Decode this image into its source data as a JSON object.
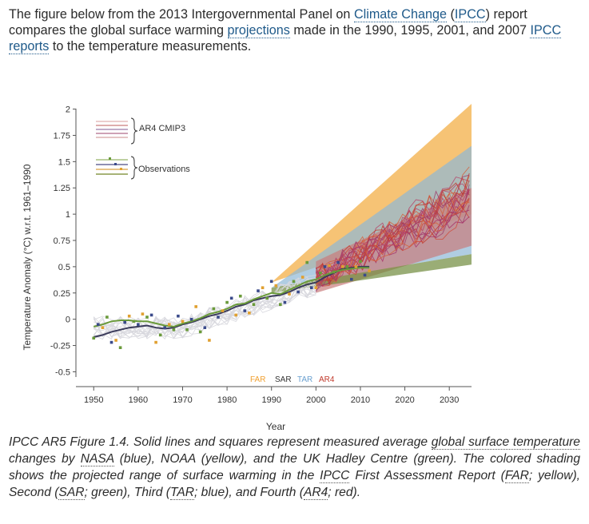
{
  "intro": {
    "t1": "The figure below from the 2013 Intergovernmental Panel on ",
    "l1": "Climate Change",
    "t2": " (",
    "l2": "IPCC",
    "t3": ") report compares the global surface warming ",
    "l3": "projections",
    "t4": " made in the 1990, 1995, 2001, and 2007 ",
    "l4": "IPCC reports",
    "t5": " to the temperature measurements."
  },
  "caption": {
    "t1": "IPCC AR5 Figure 1.4. Solid lines and squares represent measured average ",
    "l1": "global surface temperature",
    "t2": " changes by ",
    "l2": "NASA",
    "t3": " (blue), NOAA (yellow), and the UK Hadley Centre (green). The colored shading shows the projected range of surface warming in the ",
    "l3": "IPCC",
    "t4": " First Assessment Report (",
    "l4": "FAR",
    "t5": "; yellow), Second (",
    "l5": "SAR",
    "t6": "; green), Third (",
    "l6": "TAR",
    "t7": "; blue), and Fourth (",
    "l7": "AR4",
    "t8": "; red)."
  },
  "chart_data": {
    "type": "line",
    "title": "",
    "xlabel": "Year",
    "ylabel": "Temperature Anomaly (°C) w.r.t. 1961–1990",
    "xlim": [
      1946,
      2035
    ],
    "ylim": [
      -0.55,
      2.05
    ],
    "x_ticks": [
      "1950",
      "1960",
      "1970",
      "1980",
      "1990",
      "2000",
      "2010",
      "2020",
      "2030"
    ],
    "x_tick_values": [
      1950,
      1960,
      1970,
      1980,
      1990,
      2000,
      2010,
      2020,
      2030
    ],
    "y_ticks": [
      "-0.5",
      "-0.25",
      "0",
      "0.25",
      "0.5",
      "0.75",
      "1",
      "1.25",
      "1.5",
      "1.75",
      "2"
    ],
    "y_tick_values": [
      -0.5,
      -0.25,
      0,
      0.25,
      0.5,
      0.75,
      1,
      1.25,
      1.5,
      1.75,
      2
    ],
    "legend": [
      {
        "label": "AR4 CMIP3"
      },
      {
        "label": "Observations"
      }
    ],
    "projection_labels": [
      {
        "label": "FAR",
        "color": "#f0a030"
      },
      {
        "label": "SAR",
        "color": "#333333"
      },
      {
        "label": "TAR",
        "color": "#6aa0d0"
      },
      {
        "label": "AR4",
        "color": "#c0392b"
      }
    ],
    "projection_ranges": [
      {
        "name": "FAR",
        "color": "#f2a93b",
        "x": [
          1990,
          2035
        ],
        "lower": [
          0.35,
          1.0
        ],
        "upper": [
          0.35,
          2.05
        ]
      },
      {
        "name": "TAR",
        "color": "#8fb8d6",
        "x": [
          1990,
          2035
        ],
        "lower": [
          0.3,
          0.62
        ],
        "upper": [
          0.3,
          1.65
        ]
      },
      {
        "name": "AR4",
        "color": "#c97c7c",
        "x": [
          2000,
          2035
        ],
        "lower": [
          0.25,
          0.7
        ],
        "upper": [
          0.55,
          1.25
        ]
      },
      {
        "name": "SAR",
        "color": "#6f8a3c",
        "x": [
          1990,
          2035
        ],
        "lower": [
          0.25,
          0.52
        ],
        "upper": [
          0.3,
          0.62
        ]
      }
    ],
    "series": [
      {
        "color": "#3a3a5a",
        "x": [
          1950,
          1952,
          1954,
          1956,
          1958,
          1960,
          1962,
          1964,
          1966,
          1968,
          1970,
          1972,
          1974,
          1976,
          1978,
          1980,
          1982,
          1984,
          1986,
          1988,
          1990,
          1992,
          1994,
          1996,
          1998,
          2000,
          2002,
          2004,
          2006,
          2008,
          2010,
          2012
        ],
        "values": [
          -0.17,
          -0.15,
          -0.12,
          -0.1,
          -0.08,
          -0.07,
          -0.06,
          -0.08,
          -0.09,
          -0.08,
          -0.05,
          -0.03,
          0.0,
          0.03,
          0.05,
          0.08,
          0.12,
          0.14,
          0.18,
          0.2,
          0.22,
          0.23,
          0.26,
          0.3,
          0.33,
          0.35,
          0.4,
          0.44,
          0.48,
          0.49,
          0.5,
          0.5
        ]
      },
      {
        "color": "#6a9a3a",
        "x": [
          1950,
          1952,
          1954,
          1956,
          1958,
          1960,
          1962,
          1964,
          1966,
          1968,
          1970,
          1972,
          1974,
          1976,
          1978,
          1980,
          1982,
          1984,
          1986,
          1988,
          1990,
          1992,
          1994,
          1996,
          1998,
          2000,
          2002,
          2004,
          2006,
          2008,
          2010,
          2012
        ],
        "values": [
          -0.07,
          -0.05,
          -0.02,
          -0.01,
          -0.01,
          -0.02,
          -0.02,
          -0.04,
          -0.06,
          -0.07,
          -0.04,
          -0.02,
          0.01,
          0.05,
          0.07,
          0.1,
          0.14,
          0.15,
          0.19,
          0.22,
          0.25,
          0.24,
          0.28,
          0.32,
          0.36,
          0.38,
          0.42,
          0.45,
          0.47,
          0.48,
          0.49,
          0.49
        ]
      }
    ],
    "observation_points": [
      {
        "x": 1950,
        "y": -0.18
      },
      {
        "x": 1951,
        "y": -0.05
      },
      {
        "x": 1952,
        "y": -0.08
      },
      {
        "x": 1953,
        "y": 0.02
      },
      {
        "x": 1954,
        "y": -0.22
      },
      {
        "x": 1955,
        "y": -0.2
      },
      {
        "x": 1956,
        "y": -0.27
      },
      {
        "x": 1957,
        "y": -0.03
      },
      {
        "x": 1958,
        "y": 0.03
      },
      {
        "x": 1959,
        "y": -0.02
      },
      {
        "x": 1960,
        "y": -0.05
      },
      {
        "x": 1961,
        "y": 0.05
      },
      {
        "x": 1962,
        "y": 0.02
      },
      {
        "x": 1963,
        "y": 0.04
      },
      {
        "x": 1964,
        "y": -0.22
      },
      {
        "x": 1965,
        "y": -0.15
      },
      {
        "x": 1966,
        "y": -0.08
      },
      {
        "x": 1967,
        "y": -0.05
      },
      {
        "x": 1968,
        "y": -0.1
      },
      {
        "x": 1969,
        "y": 0.03
      },
      {
        "x": 1970,
        "y": -0.02
      },
      {
        "x": 1971,
        "y": -0.1
      },
      {
        "x": 1972,
        "y": 0.0
      },
      {
        "x": 1973,
        "y": 0.12
      },
      {
        "x": 1974,
        "y": -0.12
      },
      {
        "x": 1975,
        "y": -0.08
      },
      {
        "x": 1976,
        "y": -0.2
      },
      {
        "x": 1977,
        "y": 0.1
      },
      {
        "x": 1978,
        "y": 0.02
      },
      {
        "x": 1979,
        "y": 0.08
      },
      {
        "x": 1980,
        "y": 0.16
      },
      {
        "x": 1981,
        "y": 0.2
      },
      {
        "x": 1982,
        "y": 0.04
      },
      {
        "x": 1983,
        "y": 0.22
      },
      {
        "x": 1984,
        "y": 0.08
      },
      {
        "x": 1985,
        "y": 0.06
      },
      {
        "x": 1986,
        "y": 0.14
      },
      {
        "x": 1987,
        "y": 0.27
      },
      {
        "x": 1988,
        "y": 0.3
      },
      {
        "x": 1989,
        "y": 0.2
      },
      {
        "x": 1990,
        "y": 0.36
      },
      {
        "x": 1991,
        "y": 0.32
      },
      {
        "x": 1992,
        "y": 0.14
      },
      {
        "x": 1993,
        "y": 0.16
      },
      {
        "x": 1994,
        "y": 0.24
      },
      {
        "x": 1995,
        "y": 0.36
      },
      {
        "x": 1996,
        "y": 0.26
      },
      {
        "x": 1997,
        "y": 0.4
      },
      {
        "x": 1998,
        "y": 0.54
      },
      {
        "x": 1999,
        "y": 0.3
      },
      {
        "x": 2000,
        "y": 0.3
      },
      {
        "x": 2001,
        "y": 0.44
      },
      {
        "x": 2002,
        "y": 0.5
      },
      {
        "x": 2003,
        "y": 0.51
      },
      {
        "x": 2004,
        "y": 0.45
      },
      {
        "x": 2005,
        "y": 0.54
      },
      {
        "x": 2006,
        "y": 0.5
      },
      {
        "x": 2007,
        "y": 0.5
      },
      {
        "x": 2008,
        "y": 0.38
      },
      {
        "x": 2009,
        "y": 0.5
      },
      {
        "x": 2010,
        "y": 0.55
      },
      {
        "x": 2011,
        "y": 0.42
      },
      {
        "x": 2012,
        "y": 0.46
      }
    ]
  }
}
